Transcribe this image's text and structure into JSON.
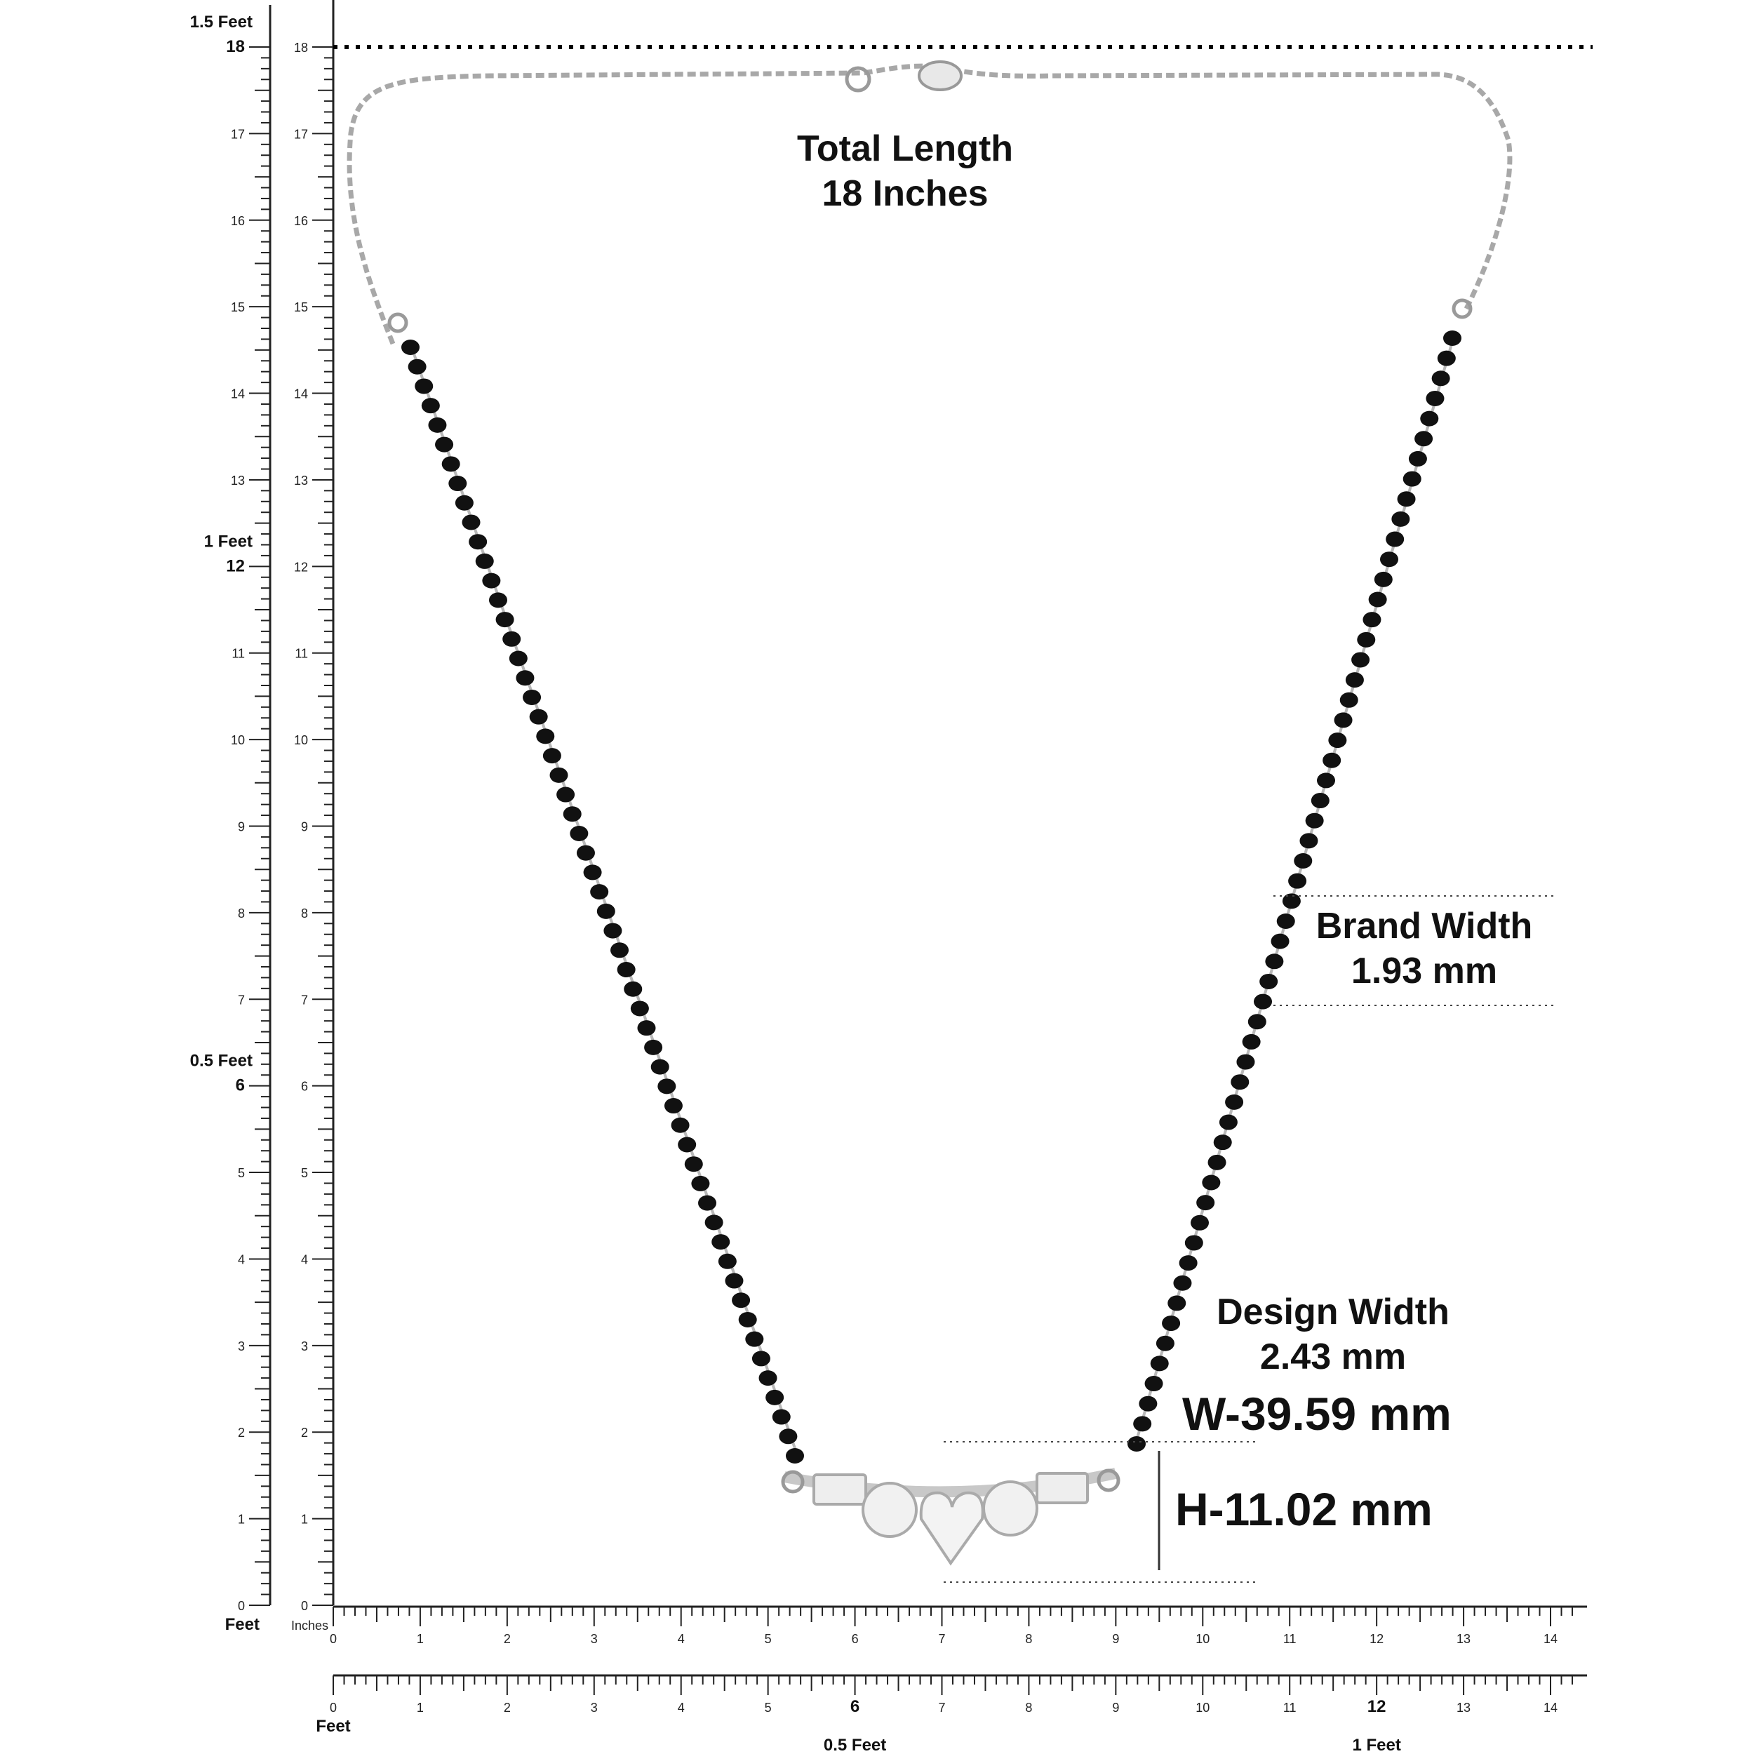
{
  "total_length": {
    "line1": "Total Length",
    "line2": "18 Inches"
  },
  "brand_width": {
    "line1": "Brand Width",
    "line2": "1.93 mm"
  },
  "design_width": {
    "line1": "Design Width",
    "line2": "2.43 mm"
  },
  "width_label": "W-39.59 mm",
  "height_label": "H-11.02 mm",
  "left_ruler": {
    "feet_labels": [
      "1.5 Feet",
      "1 Feet",
      "0.5 Feet",
      "Feet"
    ],
    "inches_label": "Inches",
    "max_inches": 18
  },
  "bottom_ruler": {
    "feet_label": "Feet",
    "half_foot_label": "0.5 Feet",
    "one_foot_label": "1 Feet",
    "max_inches": 14
  },
  "colors": {
    "chain": "#9a9a9a",
    "bead": "#111111",
    "stone": "#e6e6e6",
    "ruler": "#222222"
  }
}
